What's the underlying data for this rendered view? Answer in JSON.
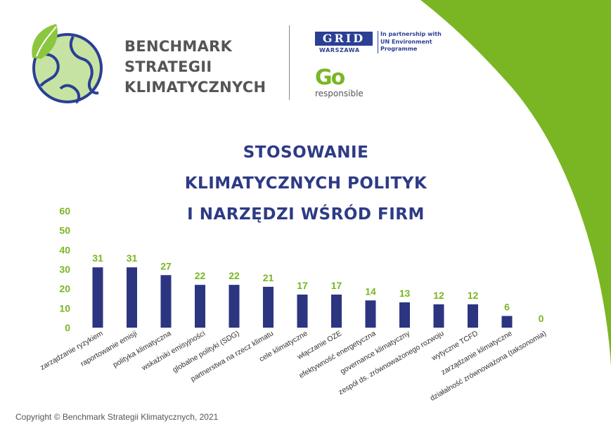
{
  "brand": {
    "lines": [
      "BENCHMARK",
      "STRATEGII",
      "KLIMATYCZNYCH"
    ]
  },
  "partners": {
    "grid_logo": "GRID",
    "grid_city": "WARSZAWA",
    "partnership_lines": [
      "In partnership with",
      "UN Environment",
      "Programme"
    ],
    "go_logo": "Go",
    "go_sub": "responsible"
  },
  "copyright": "Copyright © Benchmark Strategii Klimatycznych, 2021",
  "colors": {
    "bar": "#2b3580",
    "value_label": "#7ab624",
    "title": "#2d3b86",
    "accent_green": "#7ab624"
  },
  "chart_data": {
    "type": "bar",
    "title": [
      "STOSOWANIE",
      "KLIMATYCZNYCH POLITYK",
      "I NARZĘDZI WŚRÓD FIRM"
    ],
    "categories": [
      "zarządzanie ryzykiem",
      "raportowanie emisji",
      "polityka klimatyczna",
      "wskaźniki emisyjności",
      "globalne polityki (SDG)",
      "partnerstwa na rzecz klimatu",
      "cele klimatyczne",
      "włączanie OZE",
      "efektywność energetyczna",
      "governance klimatyczny",
      "zespół ds. zrównoważonego rozwoju",
      "wytyczne TCFD",
      "zarządzanie klimatyczne",
      "działalność zrównoważona (taksonomia)"
    ],
    "values": [
      31,
      31,
      27,
      22,
      22,
      21,
      17,
      17,
      14,
      13,
      12,
      12,
      6,
      0
    ],
    "yticks": [
      "0",
      "10",
      "20",
      "30",
      "40",
      "50",
      "60"
    ],
    "ylim": [
      0,
      60
    ],
    "grid": false,
    "legend": "none"
  }
}
